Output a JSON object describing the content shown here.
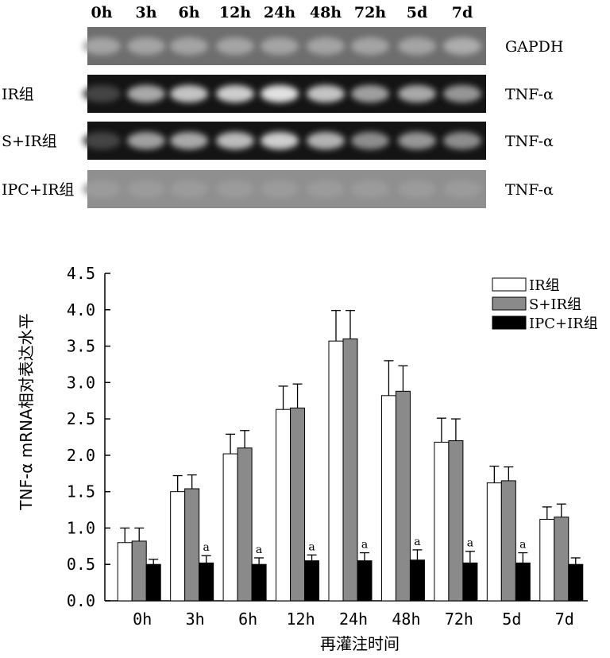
{
  "gel": {
    "lanes": [
      "0h",
      "3h",
      "6h",
      "12h",
      "24h",
      "48h",
      "72h",
      "5d",
      "7d"
    ],
    "rows": [
      {
        "left_label": "",
        "right_label": "GAPDH",
        "intensity": [
          0.55,
          0.55,
          0.55,
          0.55,
          0.55,
          0.55,
          0.55,
          0.55,
          0.6
        ]
      },
      {
        "left_label": "IR组",
        "right_label": "TNF-α",
        "intensity": [
          0.05,
          0.6,
          0.75,
          0.8,
          0.9,
          0.75,
          0.55,
          0.6,
          0.5
        ]
      },
      {
        "left_label": "S+IR组",
        "right_label": "TNF-α",
        "intensity": [
          0.05,
          0.55,
          0.6,
          0.7,
          0.8,
          0.65,
          0.45,
          0.5,
          0.45
        ]
      },
      {
        "left_label": "IPC+IR组",
        "right_label": "TNF-α",
        "intensity": [
          0.15,
          0.15,
          0.15,
          0.15,
          0.15,
          0.15,
          0.15,
          0.15,
          0.15
        ]
      }
    ]
  },
  "chart_data": {
    "type": "bar",
    "categories": [
      "0h",
      "3h",
      "6h",
      "12h",
      "24h",
      "48h",
      "72h",
      "5d",
      "7d"
    ],
    "series": [
      {
        "name": "IR组",
        "values": [
          0.8,
          1.5,
          2.02,
          2.63,
          3.57,
          2.82,
          2.18,
          1.62,
          1.12
        ],
        "errors": [
          0.2,
          0.22,
          0.27,
          0.32,
          0.42,
          0.48,
          0.33,
          0.23,
          0.17
        ],
        "color": "#ffffff"
      },
      {
        "name": "S+IR组",
        "values": [
          0.82,
          1.54,
          2.1,
          2.65,
          3.6,
          2.88,
          2.2,
          1.65,
          1.15
        ],
        "errors": [
          0.18,
          0.19,
          0.24,
          0.33,
          0.39,
          0.35,
          0.3,
          0.19,
          0.18
        ],
        "color": "#8a8a8a"
      },
      {
        "name": "IPC+IR组",
        "values": [
          0.5,
          0.52,
          0.5,
          0.55,
          0.55,
          0.56,
          0.52,
          0.52,
          0.5
        ],
        "errors": [
          0.07,
          0.1,
          0.09,
          0.08,
          0.11,
          0.14,
          0.16,
          0.14,
          0.09
        ],
        "color": "#000000"
      }
    ],
    "annotations": [
      "",
      "a",
      "a",
      "a",
      "a",
      "a",
      "a",
      "a",
      ""
    ],
    "ylim": [
      0,
      4.5
    ],
    "yticks": [
      "0.0",
      "0.5",
      "1.0",
      "1.5",
      "2.0",
      "2.5",
      "3.0",
      "3.5",
      "4.0",
      "4.5"
    ],
    "xlabel": "再灌注时间",
    "ylabel": "TNF-α mRNA相对表达水平",
    "legend": "top-right",
    "grid": false
  }
}
